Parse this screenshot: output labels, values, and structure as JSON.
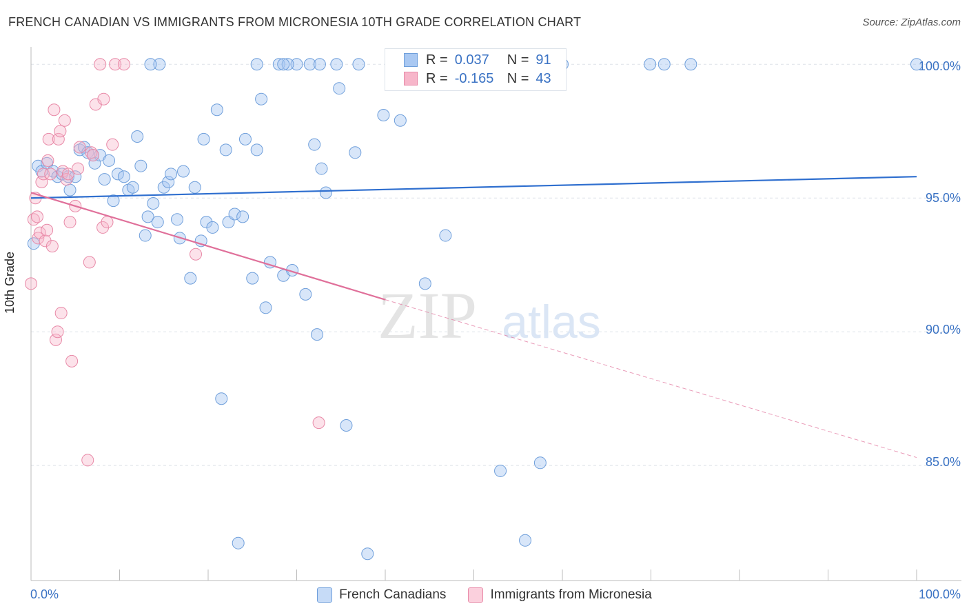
{
  "title": "FRENCH CANADIAN VS IMMIGRANTS FROM MICRONESIA 10TH GRADE CORRELATION CHART",
  "source": "Source: ZipAtlas.com",
  "watermark": {
    "zip": "ZIP",
    "atlas": "atlas"
  },
  "stats": [
    {
      "r_label": "R =",
      "r_value": "0.037",
      "n_label": "N =",
      "n_value": "91",
      "color": "#a9c8f2",
      "border": "#6f9fdb"
    },
    {
      "r_label": "R =",
      "r_value": "-0.165",
      "n_label": "N =",
      "n_value": "43",
      "color": "#f7b6ca",
      "border": "#e889a7"
    }
  ],
  "legend": [
    {
      "label": "French Canadians",
      "color": "#c6dbf7",
      "border": "#6f9fdb"
    },
    {
      "label": "Immigrants from Micronesia",
      "color": "#fbd0dd",
      "border": "#e889a7"
    }
  ],
  "colors": {
    "blue": "#3b73c4",
    "blue_line": "#2f6fcf",
    "pink": "#e0709a",
    "grid": "#dde2e8"
  },
  "chart_data": {
    "type": "scatter",
    "title": "FRENCH CANADIAN VS IMMIGRANTS FROM MICRONESIA 10TH GRADE CORRELATION CHART",
    "xlabel": "",
    "ylabel": "10th Grade",
    "xlim": [
      0,
      100
    ],
    "ylim": [
      80.7,
      100.6
    ],
    "x_tick_labels": [
      {
        "value": 0,
        "label": "0.0%"
      },
      {
        "value": 100,
        "label": "100.0%"
      }
    ],
    "y_tick_labels": [
      {
        "value": 100,
        "label": "100.0%"
      },
      {
        "value": 95,
        "label": "95.0%"
      },
      {
        "value": 90,
        "label": "90.0%"
      },
      {
        "value": 85,
        "label": "85.0%"
      }
    ],
    "grid": true,
    "legend_position": "bottom-center",
    "series": [
      {
        "name": "French Canadians",
        "color": "#a9c8f2",
        "points": [
          [
            0.8,
            96.2
          ],
          [
            1.2,
            96.0
          ],
          [
            1.8,
            96.3
          ],
          [
            2.5,
            96.0
          ],
          [
            3.0,
            95.8
          ],
          [
            3.5,
            95.9
          ],
          [
            4.2,
            95.8
          ],
          [
            4.4,
            95.3
          ],
          [
            5.0,
            95.8
          ],
          [
            5.5,
            96.8
          ],
          [
            6.0,
            96.9
          ],
          [
            6.4,
            96.7
          ],
          [
            7.0,
            96.6
          ],
          [
            7.2,
            96.3
          ],
          [
            7.8,
            96.6
          ],
          [
            8.3,
            95.7
          ],
          [
            8.8,
            96.4
          ],
          [
            9.3,
            94.9
          ],
          [
            9.8,
            95.9
          ],
          [
            10.5,
            95.8
          ],
          [
            11.0,
            95.3
          ],
          [
            11.5,
            95.4
          ],
          [
            12.0,
            97.3
          ],
          [
            12.4,
            96.2
          ],
          [
            12.9,
            93.6
          ],
          [
            13.2,
            94.3
          ],
          [
            13.8,
            94.8
          ],
          [
            14.3,
            94.1
          ],
          [
            15.0,
            95.4
          ],
          [
            15.5,
            95.6
          ],
          [
            15.8,
            95.9
          ],
          [
            16.5,
            94.2
          ],
          [
            16.8,
            93.5
          ],
          [
            17.2,
            96.0
          ],
          [
            18.0,
            92.0
          ],
          [
            18.5,
            95.4
          ],
          [
            19.2,
            93.4
          ],
          [
            19.5,
            97.2
          ],
          [
            19.8,
            94.1
          ],
          [
            20.5,
            93.9
          ],
          [
            21.0,
            98.3
          ],
          [
            21.5,
            87.5
          ],
          [
            22.0,
            96.8
          ],
          [
            22.3,
            94.1
          ],
          [
            23.0,
            94.4
          ],
          [
            23.4,
            82.1
          ],
          [
            23.9,
            94.3
          ],
          [
            24.2,
            97.2
          ],
          [
            25.0,
            92.0
          ],
          [
            25.5,
            96.8
          ],
          [
            26.0,
            98.7
          ],
          [
            26.5,
            90.9
          ],
          [
            27.0,
            92.6
          ],
          [
            28.0,
            100.0
          ],
          [
            28.5,
            92.1
          ],
          [
            29.5,
            92.3
          ],
          [
            30.0,
            100.0
          ],
          [
            31.0,
            91.4
          ],
          [
            31.5,
            100.0
          ],
          [
            32.0,
            97.0
          ],
          [
            32.3,
            89.9
          ],
          [
            32.8,
            96.1
          ],
          [
            33.3,
            95.2
          ],
          [
            34.5,
            100.0
          ],
          [
            34.8,
            99.1
          ],
          [
            35.6,
            86.5
          ],
          [
            36.6,
            96.7
          ],
          [
            37.0,
            100.0
          ],
          [
            38.0,
            81.7
          ],
          [
            39.8,
            98.1
          ],
          [
            41.0,
            100.0
          ],
          [
            41.7,
            97.9
          ],
          [
            44.5,
            91.8
          ],
          [
            46.8,
            93.6
          ],
          [
            53.0,
            84.8
          ],
          [
            55.8,
            82.2
          ],
          [
            57.5,
            85.1
          ],
          [
            60.0,
            100.0
          ],
          [
            69.9,
            100.0
          ],
          [
            74.5,
            100.0
          ],
          [
            100.0,
            100.0
          ],
          [
            25.5,
            100.0
          ],
          [
            29.0,
            100.0
          ],
          [
            28.5,
            100.0
          ],
          [
            14.5,
            100.0
          ],
          [
            13.5,
            100.0
          ],
          [
            44.5,
            100.0
          ],
          [
            46.0,
            100.0
          ],
          [
            71.5,
            100.0
          ],
          [
            32.6,
            100.0
          ],
          [
            0.3,
            93.3
          ]
        ],
        "trend": {
          "x": [
            0,
            100
          ],
          "y": [
            95.0,
            95.8
          ]
        }
      },
      {
        "name": "Immigrants from Micronesia",
        "color": "#f7b6ca",
        "points": [
          [
            0.0,
            91.8
          ],
          [
            0.3,
            94.2
          ],
          [
            0.5,
            95.0
          ],
          [
            0.7,
            94.3
          ],
          [
            0.8,
            93.5
          ],
          [
            1.0,
            93.7
          ],
          [
            1.2,
            95.6
          ],
          [
            1.4,
            95.9
          ],
          [
            1.6,
            93.4
          ],
          [
            1.8,
            93.8
          ],
          [
            1.9,
            96.4
          ],
          [
            2.0,
            97.2
          ],
          [
            2.2,
            95.9
          ],
          [
            2.4,
            93.2
          ],
          [
            2.6,
            98.3
          ],
          [
            2.8,
            89.7
          ],
          [
            3.0,
            90.0
          ],
          [
            3.1,
            97.2
          ],
          [
            3.3,
            97.5
          ],
          [
            3.4,
            90.7
          ],
          [
            3.6,
            96.0
          ],
          [
            3.8,
            97.9
          ],
          [
            4.0,
            95.7
          ],
          [
            4.2,
            95.9
          ],
          [
            4.4,
            94.1
          ],
          [
            4.6,
            88.9
          ],
          [
            5.0,
            94.7
          ],
          [
            5.3,
            96.1
          ],
          [
            5.5,
            96.9
          ],
          [
            6.4,
            85.2
          ],
          [
            6.6,
            92.6
          ],
          [
            6.8,
            96.7
          ],
          [
            7.0,
            96.6
          ],
          [
            7.3,
            98.5
          ],
          [
            7.8,
            100.0
          ],
          [
            8.1,
            93.9
          ],
          [
            8.2,
            98.7
          ],
          [
            8.6,
            94.1
          ],
          [
            9.2,
            97.0
          ],
          [
            9.5,
            100.0
          ],
          [
            10.5,
            100.0
          ],
          [
            18.6,
            92.9
          ],
          [
            32.5,
            86.6
          ]
        ],
        "trend": {
          "x": [
            0,
            40
          ],
          "y": [
            95.2,
            91.2
          ]
        },
        "trend_extension": {
          "x": [
            40,
            100
          ],
          "y": [
            91.2,
            85.3
          ]
        }
      }
    ]
  }
}
